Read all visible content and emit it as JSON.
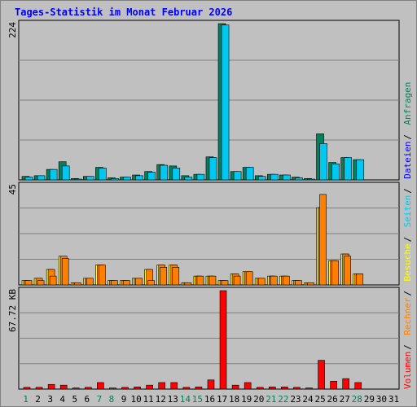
{
  "title": "Tages-Statistik im Monat Februar 2026",
  "colors": {
    "hits": "#00805c",
    "files": "#00c8f0",
    "pages": "#ffff00",
    "visits": "#ff8000",
    "kbytes": "#ff0000",
    "weekend_day": "#00805c",
    "weekday": "#000000",
    "background": "#c0c0c0"
  },
  "legend_right": [
    {
      "text": "Anfragen",
      "color": "#00805c"
    },
    {
      "text": "Dateien",
      "color": "#0000ff"
    },
    {
      "text": "Seiten",
      "color": "#00c8f0"
    },
    {
      "text": "Besuche",
      "color": "#ffff00"
    },
    {
      "text": "Rechner",
      "color": "#ff8000"
    },
    {
      "text": "Volumen",
      "color": "#ff0000"
    }
  ],
  "chart_data": [
    {
      "type": "bar",
      "panel": "Anfragen / Dateien",
      "ylabel_max": "224",
      "ylim": [
        0,
        224
      ],
      "categories": [
        "1",
        "2",
        "3",
        "4",
        "5",
        "6",
        "7",
        "8",
        "9",
        "10",
        "11",
        "12",
        "13",
        "14",
        "15",
        "16",
        "17",
        "18",
        "19",
        "20",
        "21",
        "22",
        "23",
        "24",
        "25",
        "26",
        "27",
        "28",
        "29",
        "30",
        "31"
      ],
      "series": [
        {
          "name": "Anfragen",
          "values": [
            5,
            6,
            15,
            26,
            2,
            5,
            18,
            3,
            4,
            7,
            12,
            22,
            20,
            6,
            8,
            33,
            224,
            12,
            18,
            6,
            8,
            7,
            4,
            2,
            66,
            25,
            32,
            29,
            0,
            0,
            0
          ]
        },
        {
          "name": "Dateien",
          "values": [
            4,
            6,
            15,
            20,
            1,
            5,
            17,
            2,
            4,
            6,
            11,
            21,
            17,
            4,
            8,
            32,
            222,
            12,
            18,
            5,
            8,
            7,
            3,
            1,
            52,
            23,
            32,
            29,
            0,
            0,
            0
          ]
        }
      ]
    },
    {
      "type": "bar",
      "panel": "Seiten / Besuche / Rechner",
      "ylabel_max": "45",
      "ylim": [
        0,
        45
      ],
      "categories": [
        "1",
        "2",
        "3",
        "4",
        "5",
        "6",
        "7",
        "8",
        "9",
        "10",
        "11",
        "12",
        "13",
        "14",
        "15",
        "16",
        "17",
        "18",
        "19",
        "20",
        "21",
        "22",
        "23",
        "24",
        "25",
        "26",
        "27",
        "28",
        "29",
        "30",
        "31"
      ],
      "series": [
        {
          "name": "Seiten",
          "values": [
            2,
            3,
            7,
            13,
            1,
            3,
            9,
            2,
            2,
            3,
            7,
            9,
            9,
            1,
            4,
            4,
            2,
            5,
            6,
            3,
            4,
            4,
            2,
            1,
            35,
            11,
            14,
            5,
            0,
            0,
            0
          ]
        },
        {
          "name": "Besuche",
          "values": [
            2,
            3,
            7,
            13,
            1,
            3,
            9,
            2,
            2,
            3,
            7,
            9,
            9,
            1,
            4,
            4,
            2,
            5,
            6,
            3,
            4,
            4,
            2,
            1,
            35,
            11,
            14,
            5,
            0,
            0,
            0
          ]
        },
        {
          "name": "Rechner",
          "values": [
            2,
            2,
            4,
            12,
            1,
            3,
            9,
            2,
            2,
            3,
            2,
            8,
            8,
            1,
            4,
            4,
            2,
            4,
            6,
            3,
            4,
            4,
            2,
            1,
            41,
            11,
            13,
            5,
            0,
            0,
            0
          ]
        }
      ]
    },
    {
      "type": "bar",
      "panel": "Volumen",
      "ylabel_max": "67.72 KB",
      "ylim": [
        0,
        67.72
      ],
      "categories": [
        "1",
        "2",
        "3",
        "4",
        "5",
        "6",
        "7",
        "8",
        "9",
        "10",
        "11",
        "12",
        "13",
        "14",
        "15",
        "16",
        "17",
        "18",
        "19",
        "20",
        "21",
        "22",
        "23",
        "24",
        "25",
        "26",
        "27",
        "28",
        "29",
        "30",
        "31"
      ],
      "series": [
        {
          "name": "Volumen",
          "values": [
            1.2,
            1.2,
            3.2,
            2.7,
            0.8,
            1.2,
            4.5,
            0.8,
            1.2,
            1.5,
            2.7,
            4.5,
            4.5,
            1.2,
            1.5,
            6.3,
            67.7,
            2.7,
            4.5,
            1.2,
            1.5,
            1.5,
            1.2,
            0.8,
            19.8,
            5.4,
            7.2,
            4.5,
            0,
            0,
            0
          ]
        }
      ]
    }
  ],
  "x_axis": {
    "labels": [
      "1",
      "2",
      "3",
      "4",
      "5",
      "6",
      "7",
      "8",
      "9",
      "10",
      "11",
      "12",
      "13",
      "14",
      "15",
      "16",
      "17",
      "18",
      "19",
      "20",
      "21",
      "22",
      "23",
      "24",
      "25",
      "26",
      "27",
      "28",
      "29",
      "30",
      "31"
    ],
    "weekend": [
      1,
      7,
      8,
      14,
      15,
      21,
      22,
      28
    ]
  }
}
